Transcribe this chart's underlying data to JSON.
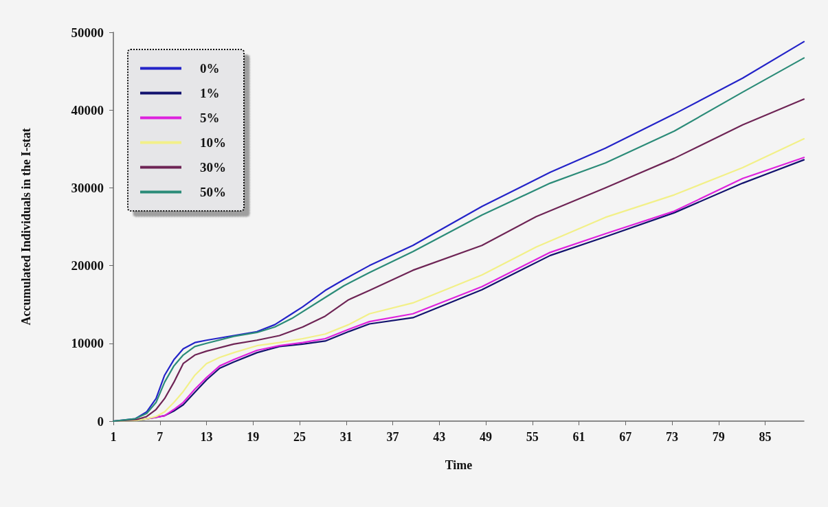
{
  "chart_data": {
    "type": "line",
    "xlabel": "Time",
    "ylabel": "Accumulated Individuals in the I-stat",
    "xlim": [
      1,
      90
    ],
    "xticks": [
      1,
      7,
      13,
      19,
      25,
      31,
      37,
      43,
      49,
      55,
      61,
      67,
      73,
      79,
      85
    ],
    "ylim": [
      0,
      50000
    ],
    "yticks": [
      0,
      10000,
      20000,
      30000,
      40000,
      50000
    ],
    "grid": false,
    "legend": "top left",
    "marker": "none",
    "line_style": "solid",
    "series": [
      {
        "name": "0%",
        "color": "#2323c8",
        "x": [
          1,
          3.8,
          5.3,
          6.5,
          7.6,
          8.8,
          10,
          11.5,
          13,
          16.5,
          19.5,
          21.8,
          24,
          25.4,
          28.3,
          30.7,
          34,
          39.6,
          48.5,
          57.3,
          64.4,
          73.3,
          82.1,
          90
        ],
        "values": [
          0,
          300,
          1200,
          2900,
          5900,
          7900,
          9300,
          10100,
          10400,
          11000,
          11500,
          12400,
          13800,
          14700,
          16800,
          18200,
          20000,
          22600,
          27600,
          32000,
          35100,
          39500,
          44100,
          48800
        ]
      },
      {
        "name": "1%",
        "color": "#12126e",
        "x": [
          1,
          4,
          5.3,
          6.5,
          7.6,
          8.8,
          10,
          11.5,
          13,
          14.7,
          16.5,
          19.5,
          22.4,
          25.4,
          28.3,
          31.3,
          34,
          39.6,
          48.5,
          57.3,
          64.4,
          73.3,
          82.1,
          90
        ],
        "values": [
          0,
          100,
          300,
          500,
          700,
          1300,
          2100,
          3700,
          5300,
          6800,
          7600,
          8800,
          9600,
          9900,
          10300,
          11500,
          12500,
          13300,
          16900,
          21300,
          23700,
          26800,
          30600,
          33600
        ]
      },
      {
        "name": "5%",
        "color": "#dd22dd",
        "x": [
          5.3,
          6.5,
          7.6,
          8.8,
          10,
          11.5,
          13,
          14.7,
          16.5,
          19.5,
          22.4,
          25.4,
          28.3,
          31.3,
          34,
          39.6,
          48.5,
          57.3,
          64.4,
          73.3,
          82.1,
          90
        ],
        "values": [
          300,
          500,
          700,
          1500,
          2400,
          4100,
          5600,
          7100,
          7900,
          9100,
          9700,
          10100,
          10600,
          11800,
          12800,
          13800,
          17300,
          21700,
          24100,
          27000,
          31200,
          33900
        ]
      },
      {
        "name": "10%",
        "color": "#f2f088",
        "x": [
          1,
          4,
          5.3,
          6.5,
          7.6,
          8.8,
          10,
          11.5,
          13,
          14.7,
          16.5,
          19.5,
          22.4,
          25.4,
          28.3,
          31.3,
          34,
          39.6,
          48.5,
          55.5,
          64.4,
          73.3,
          82.1,
          90
        ],
        "values": [
          0,
          100,
          300,
          600,
          1200,
          2400,
          3800,
          5900,
          7400,
          8200,
          8800,
          9700,
          10100,
          10600,
          11200,
          12400,
          13800,
          15200,
          18800,
          22400,
          26200,
          29100,
          32600,
          36300
        ]
      },
      {
        "name": "30%",
        "color": "#6e2455",
        "x": [
          1,
          4,
          5.3,
          6.5,
          7.6,
          8.8,
          10,
          11.5,
          13,
          16.5,
          19.5,
          22.4,
          25.4,
          28.3,
          31.3,
          34,
          39.6,
          48.5,
          55.5,
          64.4,
          73.3,
          82.1,
          90
        ],
        "values": [
          0,
          200,
          600,
          1500,
          2900,
          5000,
          7400,
          8500,
          9000,
          9900,
          10400,
          11000,
          12100,
          13500,
          15600,
          16800,
          19400,
          22600,
          26300,
          30000,
          33800,
          38100,
          41400
        ]
      },
      {
        "name": "50%",
        "color": "#2b8b78",
        "x": [
          1,
          3.8,
          5.3,
          6.5,
          7.6,
          8.8,
          10,
          11.5,
          13,
          16.5,
          19.5,
          21.8,
          24,
          28.3,
          30.7,
          34,
          39.6,
          48.5,
          57.3,
          64.4,
          73.3,
          82.1,
          90
        ],
        "values": [
          0,
          300,
          1000,
          2400,
          5000,
          7100,
          8500,
          9600,
          10000,
          10900,
          11400,
          12100,
          13200,
          15900,
          17400,
          19100,
          21800,
          26500,
          30600,
          33200,
          37300,
          42300,
          46700
        ]
      }
    ]
  }
}
